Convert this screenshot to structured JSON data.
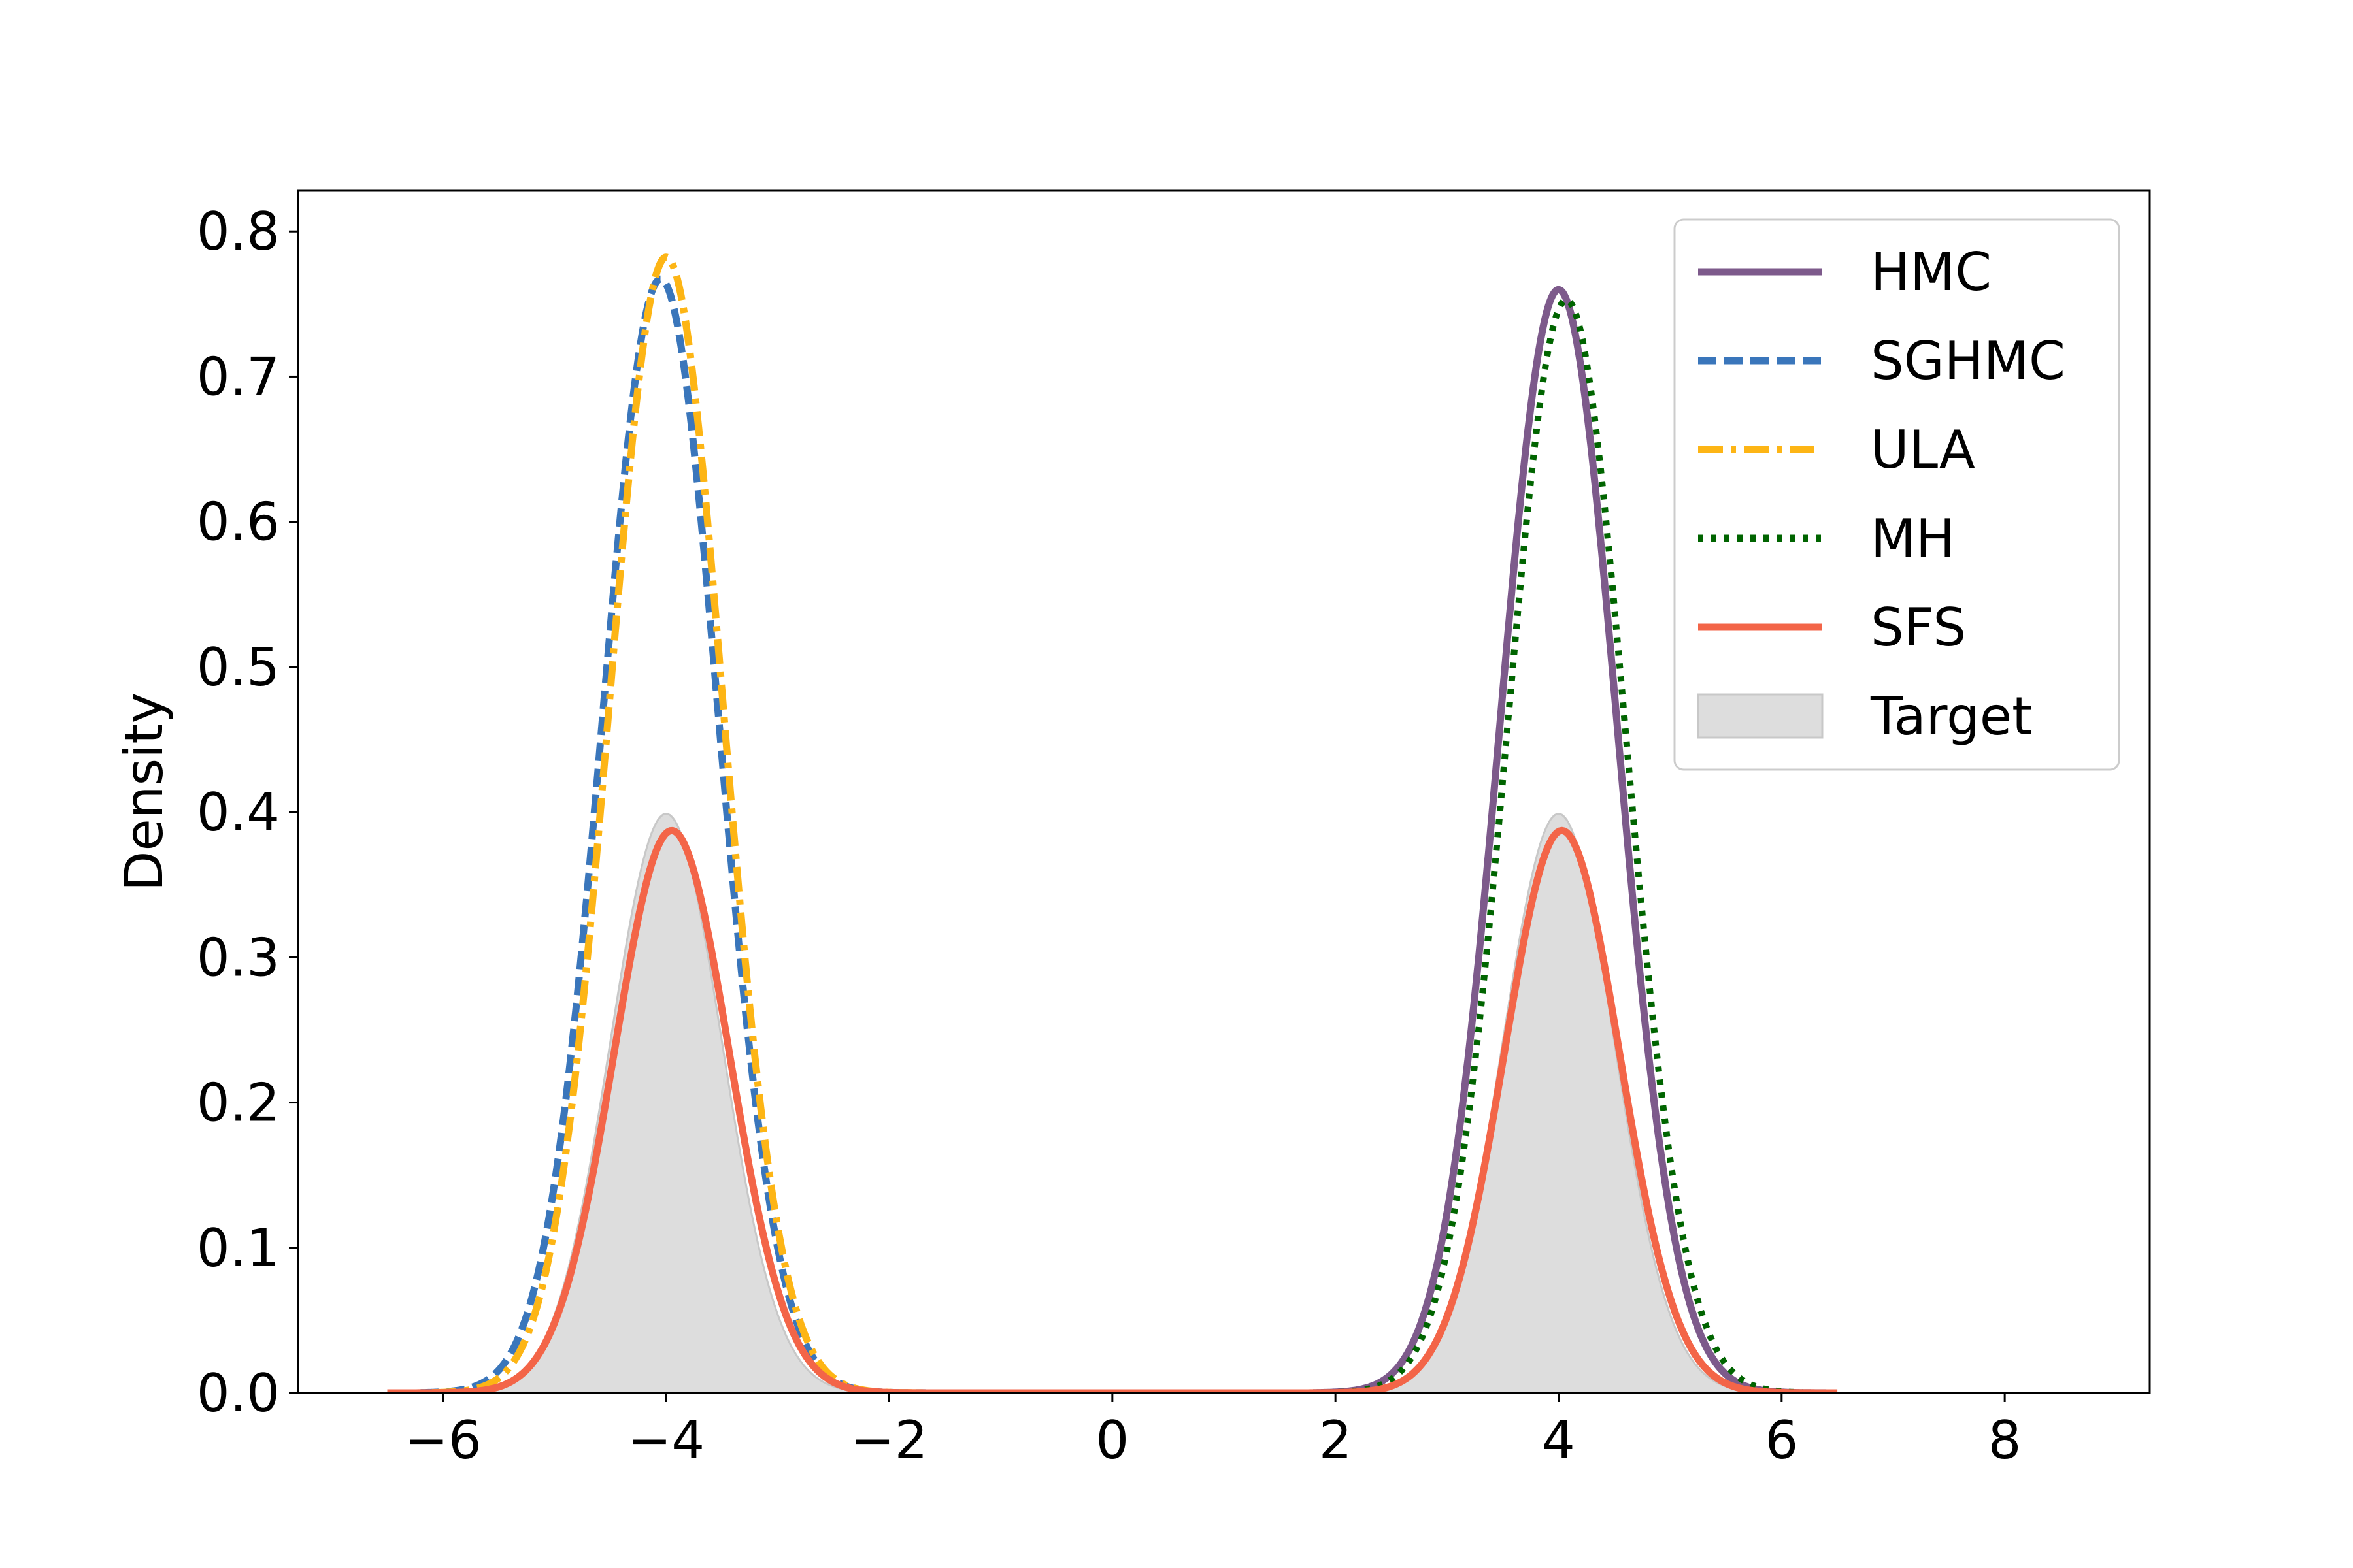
{
  "chart_data": {
    "type": "line",
    "title": "",
    "xlabel": "",
    "ylabel": "Density",
    "xlim": [
      -7.3,
      9.3
    ],
    "ylim": [
      0.0,
      0.828
    ],
    "xticks": [
      -6,
      -4,
      -2,
      0,
      2,
      4,
      6,
      8
    ],
    "xtick_labels": [
      "−6",
      "−4",
      "−2",
      "0",
      "2",
      "4",
      "6",
      "8"
    ],
    "yticks": [
      0.0,
      0.1,
      0.2,
      0.3,
      0.4,
      0.5,
      0.6,
      0.7,
      0.8
    ],
    "ytick_labels": [
      "0.0",
      "0.1",
      "0.2",
      "0.3",
      "0.4",
      "0.5",
      "0.6",
      "0.7",
      "0.8"
    ],
    "grid": false,
    "legend_position": "top-right",
    "target": {
      "name": "Target",
      "color": "#dddddd",
      "edge_color": "#c8c8c8",
      "x_range": [
        -6.5,
        6.5
      ],
      "components": [
        {
          "mu": -4.0,
          "sigma": 0.5,
          "weight": 0.5
        },
        {
          "mu": 4.0,
          "sigma": 0.5,
          "weight": 0.5
        }
      ]
    },
    "series": [
      {
        "name": "HMC",
        "color": "#7d5a8b",
        "style": "solid",
        "x_range": [
          1.8,
          6.4
        ],
        "components": [
          {
            "mu": 4.0,
            "sigma": 0.525,
            "weight": 1.0
          }
        ]
      },
      {
        "name": "SGHMC",
        "color": "#3a76bb",
        "style": "dashed",
        "x_range": [
          -6.2,
          -1.6
        ],
        "components": [
          {
            "mu": -4.05,
            "sigma": 0.52,
            "weight": 1.0
          }
        ]
      },
      {
        "name": "ULA",
        "color": "#fdb515",
        "style": "dashdot",
        "x_range": [
          -6.1,
          -1.7
        ],
        "components": [
          {
            "mu": -4.0,
            "sigma": 0.51,
            "weight": 1.0
          }
        ]
      },
      {
        "name": "MH",
        "color": "#006400",
        "style": "dotted",
        "x_range": [
          1.8,
          6.4
        ],
        "components": [
          {
            "mu": 4.07,
            "sigma": 0.53,
            "weight": 1.0
          }
        ]
      },
      {
        "name": "SFS",
        "color": "#f36548",
        "style": "solid",
        "x_range": [
          -6.5,
          6.5
        ],
        "components": [
          {
            "mu": -3.95,
            "sigma": 0.515,
            "weight": 0.5
          },
          {
            "mu": 4.03,
            "sigma": 0.515,
            "weight": 0.5
          }
        ]
      }
    ]
  }
}
